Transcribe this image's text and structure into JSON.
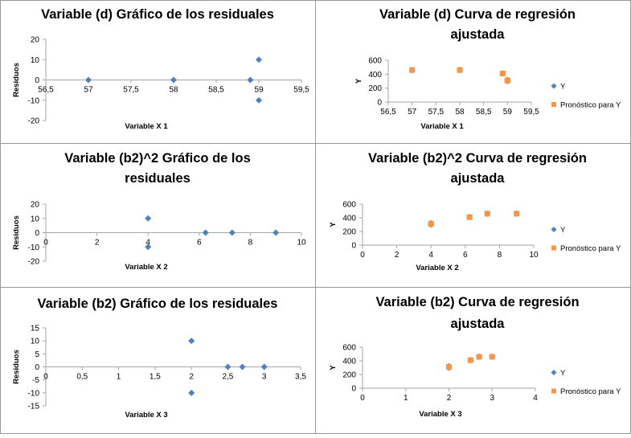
{
  "colors": {
    "blue": "#4f81bd",
    "orange": "#f79646",
    "axis": "#a6a6a6",
    "border": "#9a9a9a",
    "text": "#000000"
  },
  "chart_data": [
    {
      "type": "scatter",
      "title_lines": [
        "Variable (d) Gráfico de los residuales"
      ],
      "xlabel": "Variable X 1",
      "ylabel": "Residuos",
      "xlim": [
        56.5,
        59.5
      ],
      "ylim": [
        -20,
        20
      ],
      "xticks": [
        "56,5",
        "57",
        "57,5",
        "58",
        "58,5",
        "59",
        "59,5"
      ],
      "xtickvals": [
        56.5,
        57,
        57.5,
        58,
        58.5,
        59,
        59.5
      ],
      "yticks": [
        "20",
        "10",
        "0",
        "-10",
        "-20"
      ],
      "ytickvals": [
        20,
        10,
        0,
        -10,
        -20
      ],
      "xticks_on_zero": true,
      "series": [
        {
          "color": "blue",
          "marker": "diamond",
          "x": [
            57,
            58,
            58.9,
            59,
            59
          ],
          "y": [
            0,
            0,
            0,
            10,
            -10
          ]
        }
      ],
      "legend": []
    },
    {
      "type": "scatter",
      "title_lines": [
        "Variable (d) Curva de regresión",
        "ajustada"
      ],
      "xlabel": "Variable X 1",
      "ylabel": "Y",
      "xlim": [
        56.5,
        59.5
      ],
      "ylim": [
        0,
        600
      ],
      "xticks": [
        "56,5",
        "57",
        "57,5",
        "58",
        "58,5",
        "59",
        "59,5"
      ],
      "xtickvals": [
        56.5,
        57,
        57.5,
        58,
        58.5,
        59,
        59.5
      ],
      "yticks": [
        "600",
        "400",
        "200",
        "0"
      ],
      "ytickvals": [
        600,
        400,
        200,
        0
      ],
      "xticks_on_zero": false,
      "series": [
        {
          "color": "blue",
          "marker": "diamond",
          "x": [
            57,
            58,
            58.9,
            59,
            59
          ],
          "y": [
            460,
            460,
            410,
            300,
            320
          ]
        },
        {
          "color": "orange",
          "marker": "square",
          "x": [
            57,
            58,
            58.9,
            59,
            59
          ],
          "y": [
            460,
            460,
            410,
            310,
            310
          ]
        }
      ],
      "legend": [
        "Y",
        "Pronóstico para Y"
      ]
    },
    {
      "type": "scatter",
      "title_lines": [
        "Variable (b2)^2 Gráfico de los",
        "residuales"
      ],
      "xlabel": "Variable X 2",
      "ylabel": "Residuos",
      "xlim": [
        0,
        10
      ],
      "ylim": [
        -20,
        20
      ],
      "xticks": [
        "0",
        "2",
        "4",
        "6",
        "8",
        "10"
      ],
      "xtickvals": [
        0,
        2,
        4,
        6,
        8,
        10
      ],
      "yticks": [
        "20",
        "10",
        "0",
        "-10",
        "-20"
      ],
      "ytickvals": [
        20,
        10,
        0,
        -10,
        -20
      ],
      "xticks_on_zero": true,
      "series": [
        {
          "color": "blue",
          "marker": "diamond",
          "x": [
            4,
            4,
            6.25,
            7.29,
            9
          ],
          "y": [
            10,
            -10,
            0,
            0,
            0
          ]
        }
      ],
      "legend": []
    },
    {
      "type": "scatter",
      "title_lines": [
        "Variable (b2)^2 Curva de regresión",
        "ajustada"
      ],
      "xlabel": "Variable X 2",
      "ylabel": "Y",
      "xlim": [
        0,
        10
      ],
      "ylim": [
        0,
        600
      ],
      "xticks": [
        "0",
        "2",
        "4",
        "6",
        "8",
        "10"
      ],
      "xtickvals": [
        0,
        2,
        4,
        6,
        8,
        10
      ],
      "yticks": [
        "600",
        "400",
        "200",
        "0"
      ],
      "ytickvals": [
        600,
        400,
        200,
        0
      ],
      "xticks_on_zero": false,
      "series": [
        {
          "color": "blue",
          "marker": "diamond",
          "x": [
            4,
            4,
            6.25,
            7.29,
            9
          ],
          "y": [
            320,
            300,
            410,
            460,
            460
          ]
        },
        {
          "color": "orange",
          "marker": "square",
          "x": [
            4,
            4,
            6.25,
            7.29,
            9
          ],
          "y": [
            310,
            310,
            410,
            460,
            460
          ]
        }
      ],
      "legend": [
        "Y",
        "Pronóstico para Y"
      ]
    },
    {
      "type": "scatter",
      "title_lines": [
        "Variable (b2) Gráfico de los residuales"
      ],
      "xlabel": "Variable X 3",
      "ylabel": "Residuos",
      "xlim": [
        0,
        3.5
      ],
      "ylim": [
        -15,
        15
      ],
      "xticks": [
        "0",
        "0,5",
        "1",
        "1,5",
        "2",
        "2,5",
        "3",
        "3,5"
      ],
      "xtickvals": [
        0,
        0.5,
        1,
        1.5,
        2,
        2.5,
        3,
        3.5
      ],
      "yticks": [
        "15",
        "10",
        "5",
        "0",
        "-5",
        "-10",
        "-15"
      ],
      "ytickvals": [
        15,
        10,
        5,
        0,
        -5,
        -10,
        -15
      ],
      "xticks_on_zero": true,
      "series": [
        {
          "color": "blue",
          "marker": "diamond",
          "x": [
            2,
            2,
            2.5,
            2.7,
            3
          ],
          "y": [
            10,
            -10,
            0,
            0,
            0
          ]
        }
      ],
      "legend": []
    },
    {
      "type": "scatter",
      "title_lines": [
        "Variable (b2) Curva de regresión",
        "ajustada"
      ],
      "xlabel": "Variable X 3",
      "ylabel": "Y",
      "xlim": [
        0,
        4
      ],
      "ylim": [
        0,
        600
      ],
      "xticks": [
        "0",
        "1",
        "2",
        "3",
        "4"
      ],
      "xtickvals": [
        0,
        1,
        2,
        3,
        4
      ],
      "yticks": [
        "600",
        "400",
        "200",
        "0"
      ],
      "ytickvals": [
        600,
        400,
        200,
        0
      ],
      "xticks_on_zero": false,
      "series": [
        {
          "color": "blue",
          "marker": "diamond",
          "x": [
            2,
            2,
            2.5,
            2.7,
            3
          ],
          "y": [
            320,
            300,
            410,
            460,
            460
          ]
        },
        {
          "color": "orange",
          "marker": "square",
          "x": [
            2,
            2,
            2.5,
            2.7,
            3
          ],
          "y": [
            310,
            310,
            410,
            460,
            460
          ]
        }
      ],
      "legend": [
        "Y",
        "Pronóstico para Y"
      ]
    }
  ]
}
